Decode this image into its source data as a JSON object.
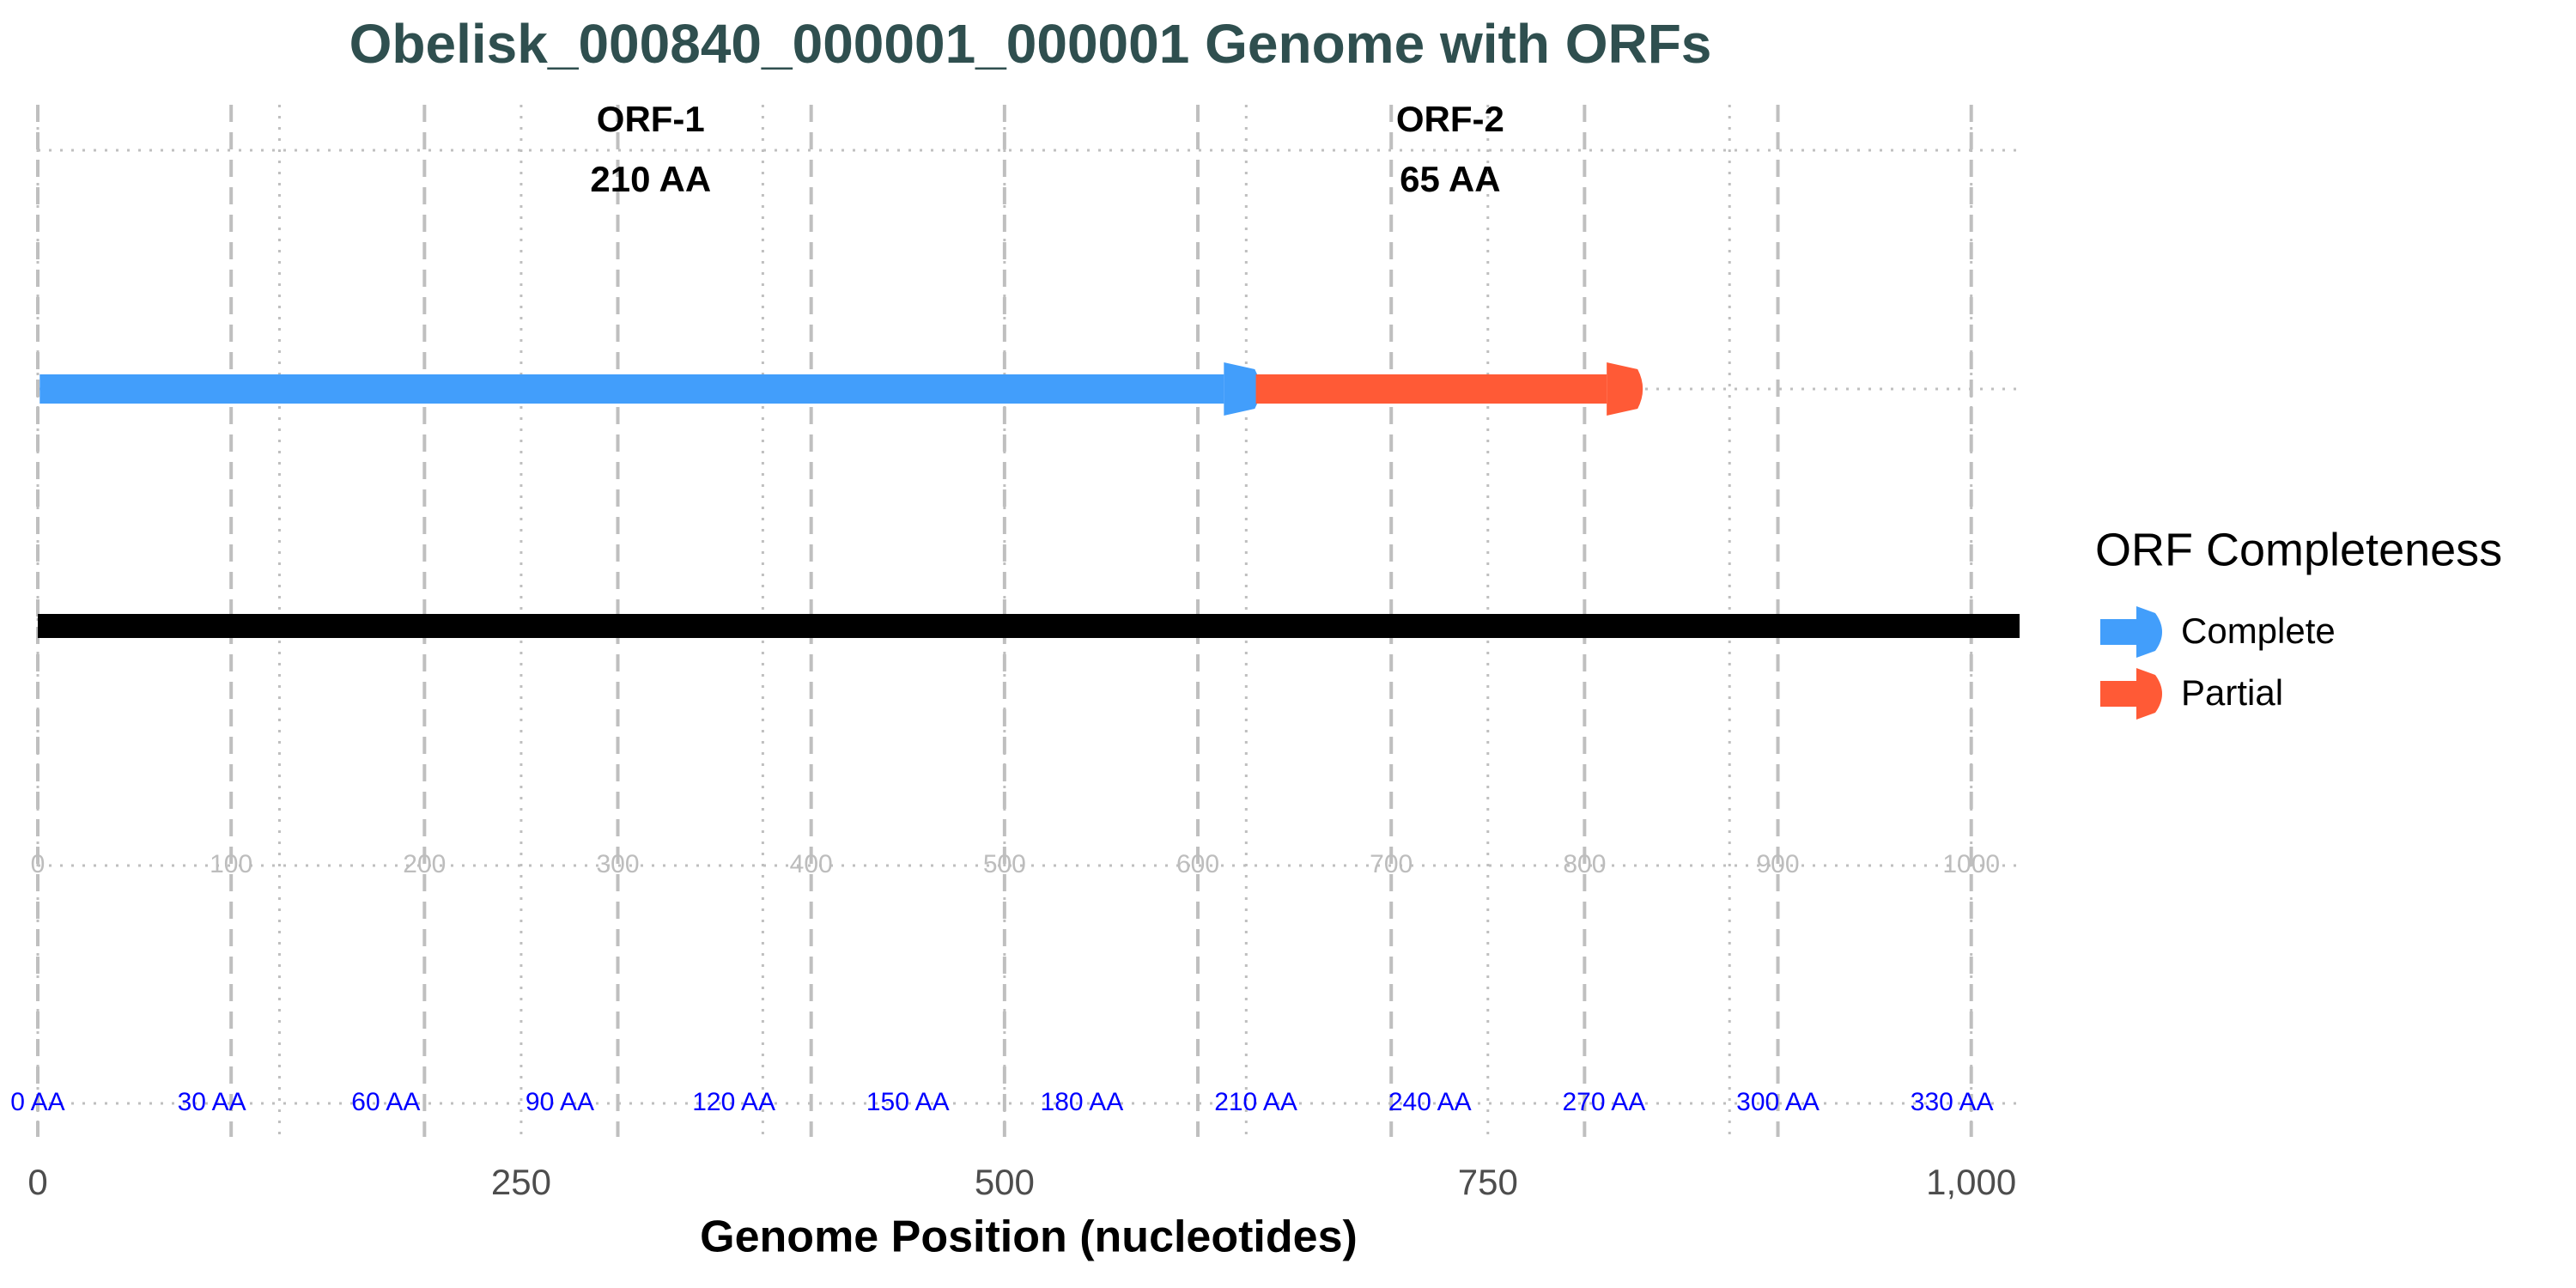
{
  "chart_data": {
    "type": "genome-map",
    "title": "Obelisk_000840_000001_000001 Genome with ORFs",
    "xlabel": "Genome Position (nucleotides)",
    "ylabel": "",
    "xlim": [
      0,
      1025
    ],
    "genome_length": 1025,
    "x_ticks": [
      0,
      250,
      500,
      750,
      1000
    ],
    "x_tick_labels": [
      "0",
      "250",
      "500",
      "750",
      "1,000"
    ],
    "position_markers": [
      0,
      100,
      200,
      300,
      400,
      500,
      600,
      700,
      800,
      900,
      1000
    ],
    "position_marker_labels": [
      "0",
      "100",
      "200",
      "300",
      "400",
      "500",
      "600",
      "700",
      "800",
      "900",
      "1000"
    ],
    "aa_markers": [
      0,
      30,
      60,
      90,
      120,
      150,
      180,
      210,
      240,
      270,
      300,
      330
    ],
    "aa_marker_labels": [
      "0 AA",
      "30 AA",
      "60 AA",
      "90 AA",
      "120 AA",
      "150 AA",
      "180 AA",
      "210 AA",
      "240 AA",
      "270 AA",
      "300 AA",
      "330 AA"
    ],
    "orfs": [
      {
        "name": "ORF-1",
        "length_label": "210 AA",
        "start": 1,
        "end": 633,
        "completeness": "Complete"
      },
      {
        "name": "ORF-2",
        "length_label": "65 AA",
        "start": 630,
        "end": 831,
        "completeness": "Partial"
      }
    ],
    "legend": {
      "title": "ORF Completeness",
      "placement": "right",
      "entries": [
        {
          "label": "Complete",
          "color": "#429EFB"
        },
        {
          "label": "Partial",
          "color": "#FF5A36"
        }
      ]
    }
  },
  "colors": {
    "title": "#2F4F4F",
    "genome_line": "#000000",
    "aa_text": "#0000FF",
    "grid": "#BFBFBF"
  }
}
